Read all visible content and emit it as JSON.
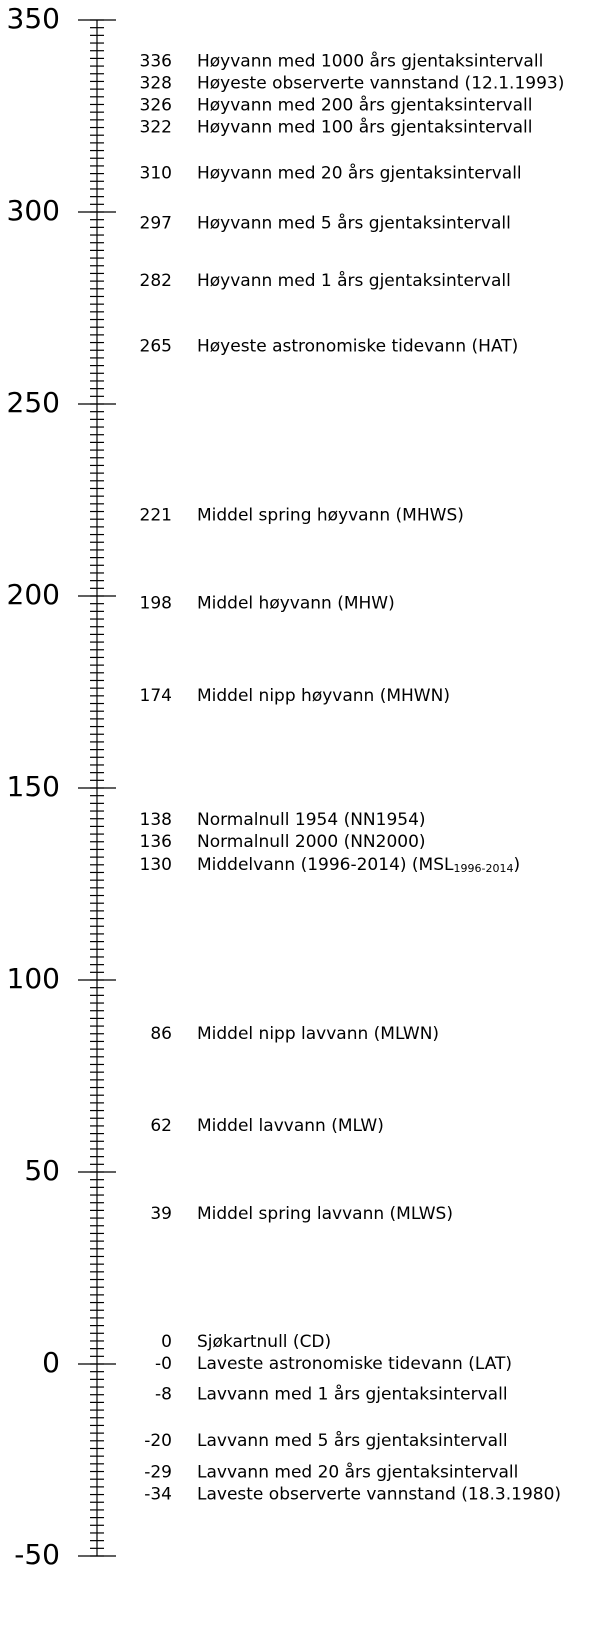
{
  "chart_data": {
    "type": "level-scale",
    "ylim": [
      -50,
      350
    ],
    "yticks": [
      -50,
      0,
      50,
      100,
      150,
      200,
      250,
      300,
      350
    ],
    "minor_tick_interval": 2,
    "levels": [
      {
        "value": 336,
        "label": "Høyvann med 1000 års gjentaksintervall"
      },
      {
        "value": 328,
        "label": "Høyeste observerte vannstand (12.1.1993)"
      },
      {
        "value": 326,
        "label": "Høyvann med 200 års gjentaksintervall"
      },
      {
        "value": 322,
        "label": "Høyvann med 100 års gjentaksintervall"
      },
      {
        "value": 310,
        "label": "Høyvann med 20 års gjentaksintervall"
      },
      {
        "value": 297,
        "label": "Høyvann med 5 års gjentaksintervall"
      },
      {
        "value": 282,
        "label": "Høyvann med 1 års gjentaksintervall"
      },
      {
        "value": 265,
        "label": "Høyeste astronomiske tidevann (HAT)"
      },
      {
        "value": 221,
        "label": "Middel spring høyvann (MHWS)"
      },
      {
        "value": 198,
        "label": "Middel høyvann (MHW)"
      },
      {
        "value": 174,
        "label": "Middel nipp høyvann (MHWN)"
      },
      {
        "value": 138,
        "label": "Normalnull 1954 (NN1954)"
      },
      {
        "value": 136,
        "label": "Normalnull 2000 (NN2000)"
      },
      {
        "value": 130,
        "label": "Middelvann (1996-2014) (MSL",
        "subscript": "1996-2014",
        "label_end": ")"
      },
      {
        "value": 86,
        "label": "Middel nipp lavvann (MLWN)"
      },
      {
        "value": 62,
        "label": "Middel lavvann (MLW)"
      },
      {
        "value": 39,
        "label": "Middel spring lavvann (MLWS)"
      },
      {
        "value": 0,
        "label": "Sjøkartnull (CD)"
      },
      {
        "value": 0,
        "value_label": "-0",
        "label": "Laveste astronomiske tidevann (LAT)"
      },
      {
        "value": -8,
        "label": "Lavvann med 1 års gjentaksintervall"
      },
      {
        "value": -20,
        "label": "Lavvann med 5 års gjentaksintervall"
      },
      {
        "value": -29,
        "label": "Lavvann med 20 års gjentaksintervall"
      },
      {
        "value": -34,
        "label": "Laveste observerte vannstand (18.3.1980)"
      }
    ]
  }
}
